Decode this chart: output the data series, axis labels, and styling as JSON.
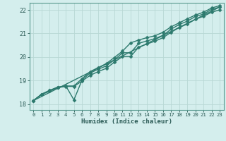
{
  "title": "",
  "xlabel": "Humidex (Indice chaleur)",
  "ylabel": "",
  "bg_color": "#d4eeed",
  "line_color": "#2d7a6e",
  "grid_color": "#b8d8d5",
  "xlim": [
    -0.5,
    23.5
  ],
  "ylim": [
    17.75,
    22.3
  ],
  "yticks": [
    18,
    19,
    20,
    21,
    22
  ],
  "ytick_labels": [
    "18",
    "19",
    "20",
    "21",
    "22"
  ],
  "xticks": [
    0,
    1,
    2,
    3,
    4,
    5,
    6,
    7,
    8,
    9,
    10,
    11,
    12,
    13,
    14,
    15,
    16,
    17,
    18,
    19,
    20,
    21,
    22,
    23
  ],
  "lines": [
    {
      "x": [
        0,
        1,
        2,
        3,
        4,
        5,
        6,
        7,
        8,
        9,
        10,
        11,
        12,
        13,
        14,
        15,
        16,
        17,
        18,
        19,
        20,
        21,
        22,
        23
      ],
      "y": [
        18.15,
        18.42,
        18.58,
        18.72,
        18.77,
        18.18,
        19.02,
        19.32,
        19.48,
        19.62,
        19.88,
        20.18,
        20.18,
        20.58,
        20.68,
        20.78,
        20.92,
        21.18,
        21.38,
        21.52,
        21.72,
        21.82,
        22.02,
        22.12
      ],
      "marker": "D",
      "markersize": 2.5,
      "linewidth": 1.0
    },
    {
      "x": [
        0,
        1,
        2,
        3,
        4,
        5,
        6,
        7,
        8,
        9,
        10,
        11,
        12,
        13,
        14,
        15,
        16,
        17,
        18,
        19,
        20,
        21,
        22,
        23
      ],
      "y": [
        18.15,
        18.42,
        18.58,
        18.72,
        18.77,
        18.77,
        19.08,
        19.38,
        19.55,
        19.72,
        19.98,
        20.25,
        20.6,
        20.72,
        20.82,
        20.9,
        21.05,
        21.28,
        21.45,
        21.62,
        21.78,
        21.9,
        22.08,
        22.18
      ],
      "marker": "D",
      "markersize": 2.5,
      "linewidth": 1.0
    },
    {
      "x": [
        0,
        23
      ],
      "y": [
        18.15,
        22.12
      ],
      "marker": null,
      "markersize": 0,
      "linewidth": 1.0
    },
    {
      "x": [
        0,
        1,
        2,
        3,
        4,
        5,
        6,
        7,
        8,
        9,
        10,
        11,
        12,
        13,
        14,
        15,
        16,
        17,
        18,
        19,
        20,
        21,
        22,
        23
      ],
      "y": [
        18.15,
        18.4,
        18.55,
        18.7,
        18.75,
        18.75,
        18.98,
        19.22,
        19.38,
        19.52,
        19.78,
        20.02,
        20.02,
        20.42,
        20.55,
        20.67,
        20.82,
        21.05,
        21.25,
        21.4,
        21.6,
        21.73,
        21.9,
        22.0
      ],
      "marker": "D",
      "markersize": 2.5,
      "linewidth": 1.0
    }
  ]
}
